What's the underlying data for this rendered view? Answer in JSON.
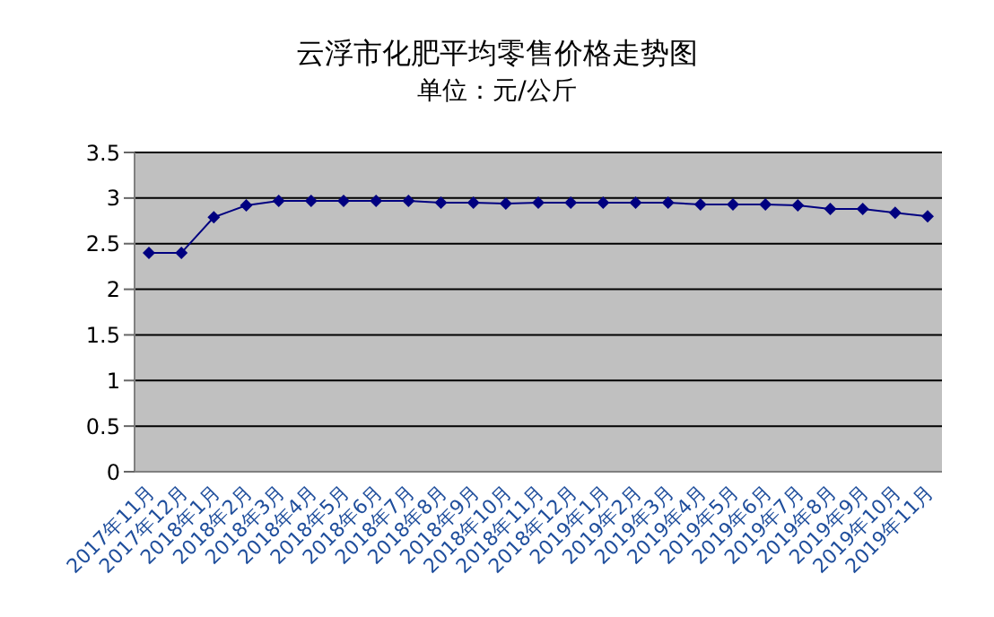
{
  "chart_data": {
    "type": "line",
    "title": "云浮市化肥平均零售价格走势图",
    "subtitle": "单位：元/公斤",
    "categories": [
      "2017年11月",
      "2017年12月",
      "2018年1月",
      "2018年2月",
      "2018年3月",
      "2018年4月",
      "2018年5月",
      "2018年6月",
      "2018年7月",
      "2018年8月",
      "2018年9月",
      "2018年10月",
      "2018年11月",
      "2018年12月",
      "2019年1月",
      "2019年2月",
      "2019年3月",
      "2019年4月",
      "2019年5月",
      "2019年6月",
      "2019年7月",
      "2019年8月",
      "2019年9月",
      "2019年10月",
      "2019年11月"
    ],
    "series": [
      {
        "color": "#000080",
        "values": [
          2.4,
          2.4,
          2.79,
          2.92,
          2.97,
          2.97,
          2.97,
          2.97,
          2.97,
          2.95,
          2.95,
          2.94,
          2.95,
          2.95,
          2.95,
          2.95,
          2.95,
          2.93,
          2.93,
          2.93,
          2.92,
          2.88,
          2.88,
          2.84,
          2.8
        ]
      }
    ],
    "ylim": [
      0,
      3.5
    ],
    "yticks": [
      0,
      0.5,
      1,
      1.5,
      2,
      2.5,
      3,
      3.5
    ],
    "grid": "y",
    "marker": "diamond",
    "line_style": "solid"
  }
}
